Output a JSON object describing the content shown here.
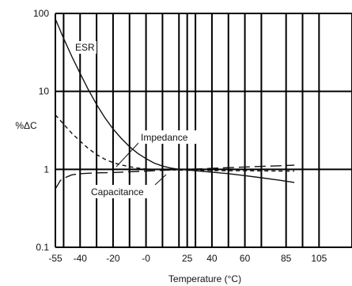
{
  "chart_data": {
    "type": "line",
    "title": "",
    "xlabel": "Temperature (°C)",
    "ylabel": "%ΔC",
    "y_scale": "log",
    "xlim": [
      -55,
      125
    ],
    "ylim": [
      0.1,
      100
    ],
    "grid": true,
    "x_gridlines": [
      -55,
      -50,
      -40,
      -30,
      -20,
      -10,
      0,
      10,
      20,
      25,
      30,
      40,
      50,
      60,
      70,
      85,
      95,
      105,
      125
    ],
    "x_tick_labels": [
      {
        "value": -55,
        "text": "-55"
      },
      {
        "value": -40,
        "text": "-40"
      },
      {
        "value": -20,
        "text": "-20"
      },
      {
        "value": 0,
        "text": "-0"
      },
      {
        "value": 25,
        "text": "25"
      },
      {
        "value": 40,
        "text": "40"
      },
      {
        "value": 60,
        "text": "60"
      },
      {
        "value": 85,
        "text": "85"
      },
      {
        "value": 105,
        "text": "105"
      }
    ],
    "y_tick_labels": [
      {
        "value": 100,
        "text": "100"
      },
      {
        "value": 10,
        "text": "10"
      },
      {
        "value": 1,
        "text": "1"
      },
      {
        "value": 0.1,
        "text": "0.1"
      }
    ],
    "series": [
      {
        "name": "ESR",
        "style": "solid",
        "x": [
          -55,
          -50,
          -45,
          -40,
          -35,
          -30,
          -25,
          -20,
          -15,
          -10,
          -5,
          0,
          5,
          10,
          15,
          20,
          25,
          30,
          40,
          50,
          60,
          70,
          80,
          90
        ],
        "values": [
          85,
          48,
          28,
          17,
          10.5,
          6.8,
          4.6,
          3.3,
          2.5,
          1.95,
          1.6,
          1.37,
          1.2,
          1.1,
          1.04,
          1.0,
          0.98,
          0.96,
          0.92,
          0.88,
          0.83,
          0.78,
          0.73,
          0.68
        ]
      },
      {
        "name": "Impedance",
        "style": "dashed",
        "x": [
          -55,
          -50,
          -45,
          -40,
          -35,
          -30,
          -25,
          -20,
          -15,
          -10,
          -5,
          0,
          10,
          20,
          25,
          30,
          40,
          50,
          60,
          70,
          80,
          90
        ],
        "values": [
          5.0,
          3.8,
          2.9,
          2.3,
          1.85,
          1.55,
          1.35,
          1.22,
          1.14,
          1.08,
          1.04,
          1.01,
          0.99,
          0.98,
          0.97,
          0.97,
          0.965,
          0.96,
          0.96,
          0.955,
          0.95,
          0.95
        ]
      },
      {
        "name": "Capacitance",
        "style": "dash-long",
        "x": [
          -55,
          -52,
          -48,
          -45,
          -40,
          -30,
          -20,
          -10,
          0,
          10,
          20,
          25,
          30,
          40,
          50,
          60,
          70,
          80,
          90
        ],
        "values": [
          0.56,
          0.72,
          0.8,
          0.85,
          0.88,
          0.9,
          0.91,
          0.93,
          0.95,
          0.97,
          0.99,
          1.0,
          1.01,
          1.03,
          1.05,
          1.07,
          1.09,
          1.11,
          1.13
        ]
      }
    ],
    "annotations": [
      {
        "text": "ESR",
        "series": "ESR"
      },
      {
        "text": "Impedance",
        "series": "Impedance"
      },
      {
        "text": "Capacitance",
        "series": "Capacitance"
      }
    ],
    "colors": {
      "line": "#111111",
      "grid": "#000000"
    }
  }
}
